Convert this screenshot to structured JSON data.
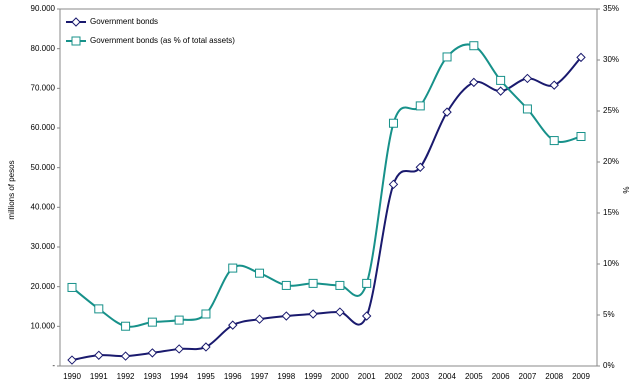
{
  "chart_data": {
    "type": "line",
    "categories": [
      "1990",
      "1991",
      "1992",
      "1993",
      "1994",
      "1995",
      "1996",
      "1997",
      "1998",
      "1999",
      "2000",
      "2001",
      "2002",
      "2003",
      "2004",
      "2005",
      "2006",
      "2007",
      "2008",
      "2009"
    ],
    "y_label": "millions of pesos",
    "y2_label": "%",
    "ylim": [
      0,
      90000
    ],
    "yticks": [
      {
        "value": 0,
        "label": "-"
      },
      {
        "value": 10000,
        "label": "10.000"
      },
      {
        "value": 20000,
        "label": "20.000"
      },
      {
        "value": 30000,
        "label": "30.000"
      },
      {
        "value": 40000,
        "label": "40.000"
      },
      {
        "value": 50000,
        "label": "50.000"
      },
      {
        "value": 60000,
        "label": "60.000"
      },
      {
        "value": 70000,
        "label": "70.000"
      },
      {
        "value": 80000,
        "label": "80.000"
      },
      {
        "value": 90000,
        "label": "90.000"
      }
    ],
    "y2lim": [
      0,
      35
    ],
    "y2ticks": [
      {
        "value": 0,
        "label": "0%"
      },
      {
        "value": 5,
        "label": "5%"
      },
      {
        "value": 10,
        "label": "10%"
      },
      {
        "value": 15,
        "label": "15%"
      },
      {
        "value": 20,
        "label": "20%"
      },
      {
        "value": 25,
        "label": "25%"
      },
      {
        "value": 30,
        "label": "30%"
      },
      {
        "value": 35,
        "label": "35%"
      }
    ],
    "legend": "upper left",
    "series": [
      {
        "name": "Government bonds",
        "color": "#1a1a6e",
        "marker": "diamond",
        "values": [
          1500,
          2700,
          2500,
          3300,
          4300,
          4800,
          10300,
          11800,
          12600,
          13100,
          13600,
          12600,
          45800,
          50100,
          64000,
          71500,
          69300,
          72500,
          70800,
          77800
        ]
      },
      {
        "name": "Government bonds (as % of total assets)",
        "color": "#17918a",
        "marker": "square",
        "axis": "y2",
        "values": [
          7.7,
          5.6,
          3.9,
          4.3,
          4.5,
          5.1,
          9.6,
          9.1,
          7.9,
          8.1,
          7.9,
          8.1,
          23.8,
          25.5,
          30.3,
          31.4,
          28.0,
          25.2,
          22.1,
          22.5
        ]
      }
    ]
  }
}
